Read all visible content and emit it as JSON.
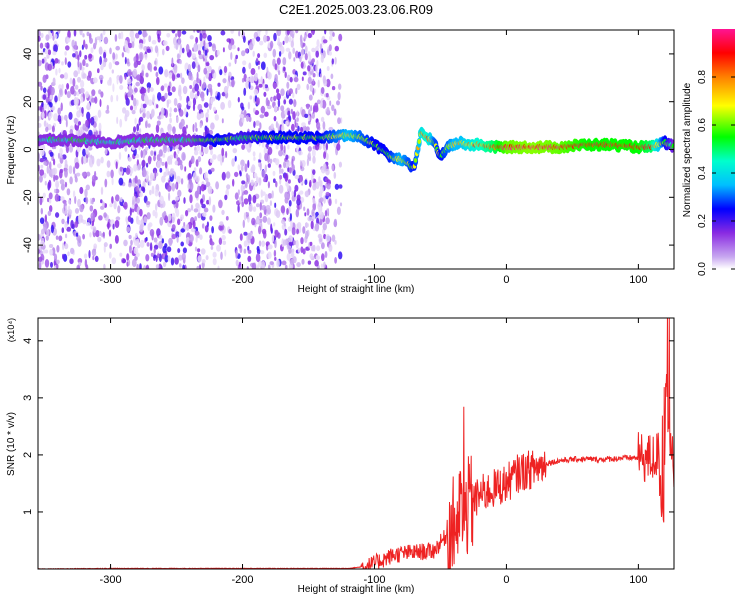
{
  "title": "C2E1.2025.003.23.06.R09",
  "chart_data": [
    {
      "type": "heatmap",
      "xlabel": "Height of straight line (km)",
      "ylabel": "Frequency (Hz)",
      "xlim": [
        -355,
        127
      ],
      "ylim": [
        -50,
        50
      ],
      "x_ticks": [
        -300,
        -200,
        -100,
        0,
        100
      ],
      "y_ticks": [
        -40,
        -20,
        0,
        20,
        40
      ],
      "colorbar": {
        "label": "Normalized spectral amplitude",
        "range": [
          0,
          1
        ],
        "ticks": [
          0.0,
          0.2,
          0.4,
          0.6,
          0.8
        ],
        "colors": [
          "#ffffff",
          "#c8a8f0",
          "#8a2be2",
          "#0000ff",
          "#00bfff",
          "#00ffcc",
          "#00ff00",
          "#ffff00",
          "#ff8000",
          "#ff0000",
          "#ff1493"
        ]
      },
      "main_band": [
        [
          -355,
          4,
          0.45
        ],
        [
          -330,
          4,
          0.5
        ],
        [
          -300,
          3,
          0.45
        ],
        [
          -270,
          4,
          0.5
        ],
        [
          -240,
          4,
          0.5
        ],
        [
          -220,
          4,
          0.6
        ],
        [
          -200,
          5,
          0.55
        ],
        [
          -180,
          5,
          0.6
        ],
        [
          -160,
          5,
          0.6
        ],
        [
          -140,
          5,
          0.6
        ],
        [
          -120,
          6,
          0.7
        ],
        [
          -110,
          5,
          0.65
        ],
        [
          -100,
          2,
          0.6
        ],
        [
          -95,
          0,
          0.6
        ],
        [
          -90,
          -2,
          0.6
        ],
        [
          -85,
          -4,
          0.65
        ],
        [
          -80,
          -4,
          0.7
        ],
        [
          -75,
          -6,
          0.65
        ],
        [
          -70,
          -8,
          0.6
        ],
        [
          -65,
          7,
          0.75
        ],
        [
          -60,
          5,
          0.8
        ],
        [
          -55,
          3,
          0.65
        ],
        [
          -50,
          -3,
          0.6
        ],
        [
          -45,
          1,
          0.65
        ],
        [
          -40,
          2,
          0.7
        ],
        [
          -35,
          3,
          0.7
        ],
        [
          -30,
          2,
          0.75
        ],
        [
          -20,
          2,
          0.8
        ],
        [
          -10,
          1,
          0.85
        ],
        [
          0,
          1,
          0.95
        ],
        [
          20,
          1,
          0.97
        ],
        [
          40,
          1,
          0.95
        ],
        [
          60,
          2,
          0.9
        ],
        [
          80,
          2,
          0.9
        ],
        [
          100,
          1,
          0.9
        ],
        [
          110,
          1,
          0.85
        ],
        [
          120,
          3,
          0.6
        ],
        [
          127,
          1,
          0.5
        ]
      ]
    },
    {
      "type": "line",
      "xlabel": "Height of straight line (km)",
      "ylabel": "SNR (10 * v/v)",
      "y_multiplier_label": "(x10⁴)",
      "xlim": [
        -355,
        127
      ],
      "ylim": [
        0,
        4.4
      ],
      "x_ticks": [
        -300,
        -200,
        -100,
        0,
        100
      ],
      "y_ticks": [
        1,
        2,
        3,
        4
      ],
      "series_color": "#ee2222",
      "x": [
        -355,
        -300,
        -200,
        -120,
        -105,
        -95,
        -85,
        -75,
        -65,
        -55,
        -45,
        -35,
        -28,
        -20,
        -10,
        0,
        10,
        20,
        30,
        40,
        50,
        60,
        70,
        80,
        90,
        100,
        110,
        115,
        119,
        121,
        124,
        127
      ],
      "y": [
        0.0,
        0.01,
        0.01,
        0.01,
        0.05,
        0.15,
        0.25,
        0.28,
        0.3,
        0.32,
        0.6,
        0.9,
        1.1,
        1.3,
        1.4,
        1.5,
        1.7,
        1.75,
        1.85,
        1.9,
        1.92,
        1.93,
        1.92,
        1.93,
        1.95,
        1.95,
        1.93,
        2.0,
        0.8,
        3.5,
        2.0,
        1.85
      ]
    }
  ]
}
